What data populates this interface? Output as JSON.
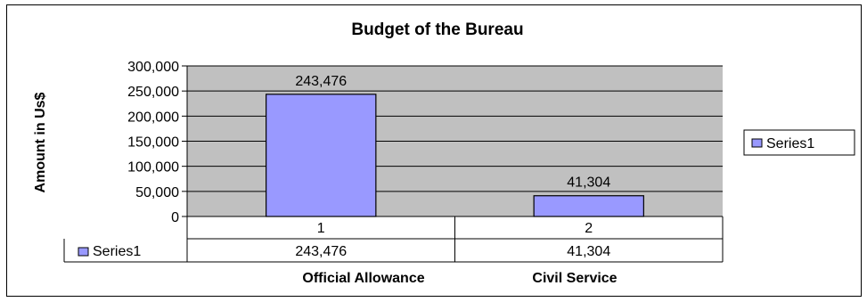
{
  "chart_data": {
    "type": "bar",
    "title": "Budget of the Bureau",
    "ylabel": "Amount in Us$",
    "xlabel": "",
    "categories": [
      "1",
      "2"
    ],
    "category_names": [
      "Official Allowance",
      "Civil Service"
    ],
    "ylim": [
      0,
      300000
    ],
    "yticks": [
      0,
      50000,
      100000,
      150000,
      200000,
      250000,
      300000
    ],
    "ytick_labels": [
      "0",
      "50,000",
      "100,000",
      "150,000",
      "200,000",
      "250,000",
      "300,000"
    ],
    "series": [
      {
        "name": "Series1",
        "values": [
          243476,
          41304
        ],
        "labels": [
          "243,476",
          "41,304"
        ]
      }
    ],
    "legend": {
      "position": "right"
    },
    "data_table": true,
    "grid": true,
    "colors": {
      "bar": "#9999ff",
      "plot_bg": "#c0c0c0",
      "gridline": "#000000"
    }
  }
}
